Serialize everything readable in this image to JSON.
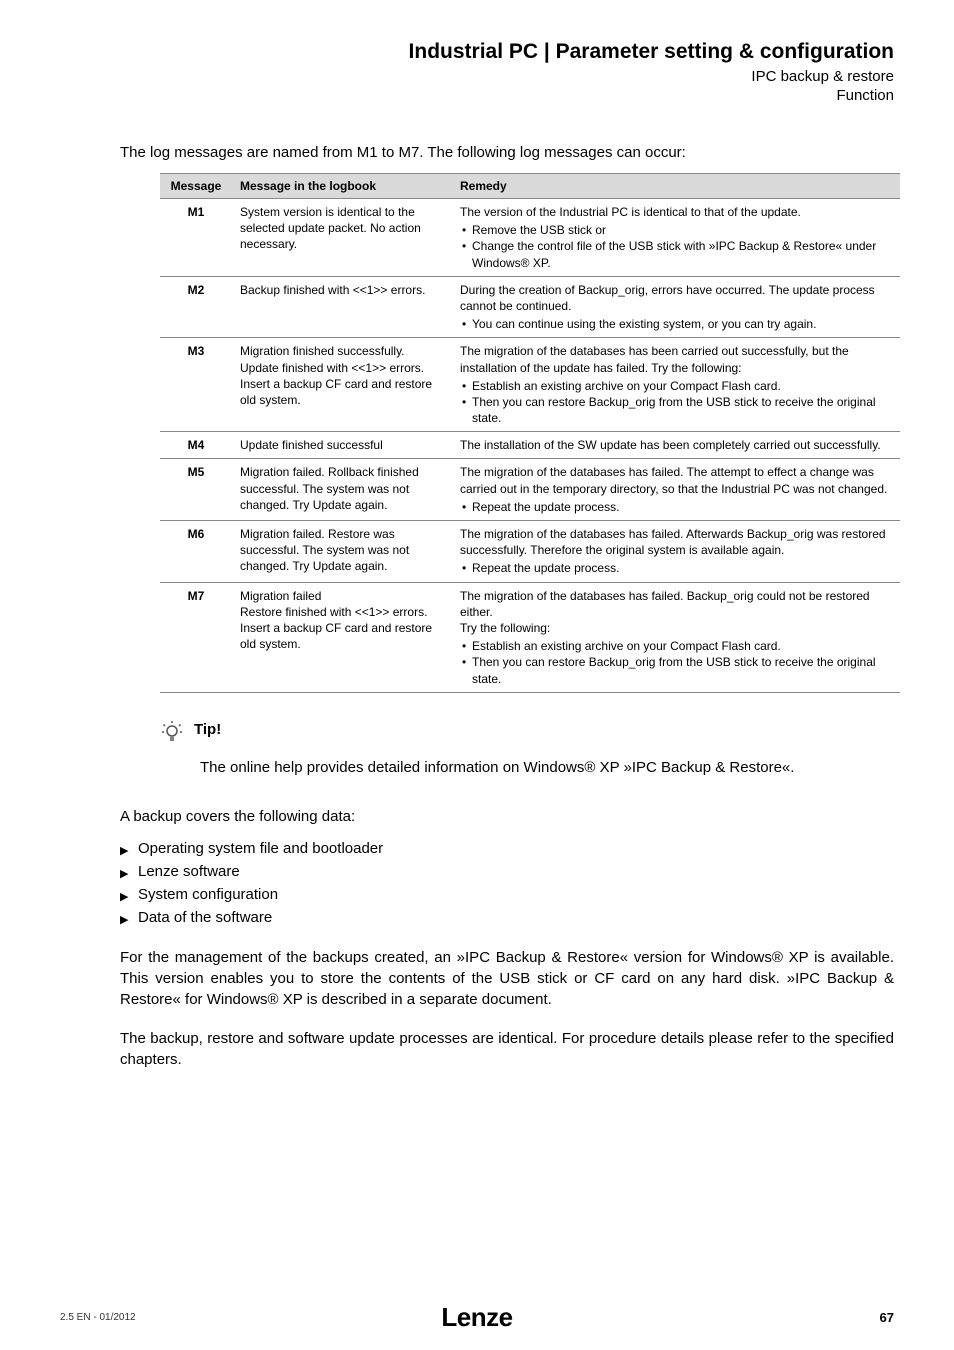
{
  "header": {
    "title": "Industrial PC | Parameter setting & configuration",
    "sub1": "IPC backup & restore",
    "sub2": "Function"
  },
  "intro": "The log messages are named from M1 to M7. The following log messages can occur:",
  "table": {
    "headers": {
      "c1": "Message",
      "c2": "Message in the logbook",
      "c3": "Remedy"
    },
    "rows": [
      {
        "id": "M1",
        "logbook": "System version is identical to the selected update packet. No action necessary.",
        "remedy_intro": "The version of the Industrial PC is identical to that of the update.",
        "remedy_bullets": [
          "Remove the USB stick or",
          "Change the control file of the USB stick with »IPC Backup & Restore« under Windows® XP."
        ]
      },
      {
        "id": "M2",
        "logbook": "Backup finished with <<1>> errors.",
        "remedy_intro": "During the creation of Backup_orig, errors have occurred. The update process cannot be continued.",
        "remedy_bullets": [
          "You can continue using the existing system, or you can try again."
        ]
      },
      {
        "id": "M3",
        "logbook": "Migration finished successfully. Update finished with <<1>> errors. Insert a backup CF card and restore old system.",
        "remedy_intro": "The migration of the databases has been carried out successfully, but the installation of the update has failed. Try the following:",
        "remedy_bullets": [
          "Establish an existing archive on your Compact Flash card.",
          "Then you can restore Backup_orig from the USB stick to receive the original state."
        ]
      },
      {
        "id": "M4",
        "logbook": "Update finished successful",
        "remedy_intro": "The installation of the SW update has been completely carried out successfully.",
        "remedy_bullets": []
      },
      {
        "id": "M5",
        "logbook": "Migration failed. Rollback finished successful. The system was not changed. Try Update again.",
        "remedy_intro": "The migration of the databases has failed. The attempt to effect a change was carried out in the temporary directory, so that the Industrial PC was not changed.",
        "remedy_bullets": [
          "Repeat the update process."
        ]
      },
      {
        "id": "M6",
        "logbook": "Migration failed. Restore was successful. The system was not changed. Try Update again.",
        "remedy_intro": "The migration of the databases has failed. Afterwards Backup_orig was restored successfully. Therefore the original system is available again.",
        "remedy_bullets": [
          "Repeat the update process."
        ]
      },
      {
        "id": "M7",
        "logbook": "Migration failed\nRestore finished with <<1>> errors. Insert a backup CF card and restore old system.",
        "remedy_intro": "The migration of the databases has failed. Backup_orig could not be restored either.\nTry the following:",
        "remedy_bullets": [
          "Establish an existing archive on your Compact Flash card.",
          "Then you can restore Backup_orig from the USB stick to receive the original state."
        ]
      }
    ]
  },
  "tip": {
    "label": "Tip!",
    "text": "The online help provides detailed information on Windows® XP »IPC Backup & Restore«."
  },
  "backup_intro": "A backup covers the following data:",
  "backup_items": [
    "Operating system file and bootloader",
    "Lenze software",
    "System configuration",
    "Data of the software"
  ],
  "para1": "For the management of the backups created, an »IPC Backup & Restore« version for Windows® XP is available. This version enables you to store the contents of the USB stick or CF card on any hard disk. »IPC Backup & Restore« for Windows® XP is described in a separate document.",
  "para2": "The backup, restore and software update processes are identical. For procedure details please refer to the specified chapters.",
  "footer": {
    "left": "2.5 EN - 01/2012",
    "logo": "Lenze",
    "page": "67"
  }
}
